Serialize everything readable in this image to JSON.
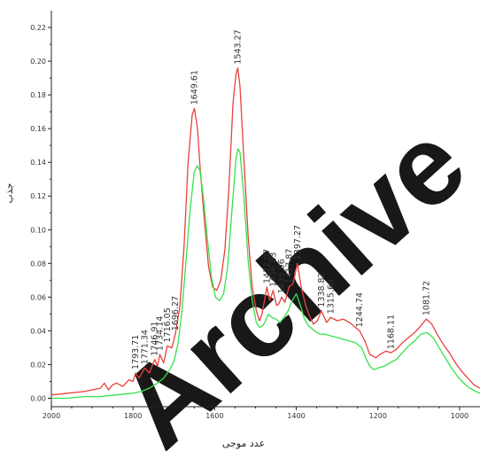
{
  "chart_data": {
    "type": "line",
    "xlabel": "عدد موجی",
    "ylabel": "جذب",
    "xlim": [
      2000,
      950
    ],
    "x_reversed": true,
    "ylim": [
      -0.005,
      0.23
    ],
    "x_ticks": [
      2000,
      1800,
      1600,
      1400,
      1200,
      1000
    ],
    "y_ticks": [
      0.0,
      0.02,
      0.04,
      0.06,
      0.08,
      0.1,
      0.12,
      0.14,
      0.16,
      0.18,
      0.2,
      0.22
    ],
    "x_tick_labels": [
      "2000",
      "1800",
      "1600",
      "1400",
      "1200",
      "1000"
    ],
    "y_tick_labels": [
      "0.00",
      "0.02",
      "0.04",
      "0.06",
      "0.08",
      "0.10",
      "0.12",
      "0.14",
      "0.16",
      "0.18",
      "0.20",
      "0.22"
    ],
    "grid": false,
    "series": [
      {
        "color": "#e8413c",
        "x": [
          2000,
          1960,
          1920,
          1900,
          1880,
          1870,
          1860,
          1850,
          1840,
          1825,
          1810,
          1800,
          1793.71,
          1785,
          1771.34,
          1760,
          1746.91,
          1740,
          1734.14,
          1725,
          1716.05,
          1705,
          1696.27,
          1685,
          1675,
          1665,
          1655,
          1649.61,
          1642,
          1635,
          1625,
          1615,
          1605,
          1595,
          1585,
          1575,
          1565,
          1555,
          1548,
          1543.27,
          1538,
          1528,
          1518,
          1508,
          1498,
          1490,
          1484,
          1478,
          1472.07,
          1465,
          1456.83,
          1448,
          1443,
          1435.96,
          1428,
          1417.87,
          1408,
          1397.27,
          1388,
          1378,
          1368,
          1358,
          1348,
          1338.82,
          1326,
          1315.6,
          1300,
          1285,
          1270,
          1255,
          1244.74,
          1232,
          1220,
          1205,
          1195,
          1180,
          1168.11,
          1155,
          1140,
          1125,
          1110,
          1095,
          1081.72,
          1068,
          1055,
          1040,
          1025,
          1010,
          995,
          980,
          965,
          950
        ],
        "y": [
          0.002,
          0.003,
          0.004,
          0.005,
          0.006,
          0.009,
          0.005,
          0.008,
          0.009,
          0.007,
          0.011,
          0.01,
          0.015,
          0.012,
          0.018,
          0.015,
          0.023,
          0.019,
          0.026,
          0.021,
          0.031,
          0.03,
          0.038,
          0.055,
          0.09,
          0.14,
          0.168,
          0.172,
          0.16,
          0.135,
          0.105,
          0.078,
          0.066,
          0.064,
          0.07,
          0.088,
          0.125,
          0.175,
          0.192,
          0.196,
          0.185,
          0.14,
          0.096,
          0.066,
          0.052,
          0.046,
          0.05,
          0.058,
          0.066,
          0.058,
          0.064,
          0.055,
          0.056,
          0.06,
          0.057,
          0.066,
          0.068,
          0.08,
          0.066,
          0.056,
          0.049,
          0.044,
          0.046,
          0.052,
          0.045,
          0.048,
          0.046,
          0.047,
          0.045,
          0.042,
          0.04,
          0.034,
          0.026,
          0.024,
          0.026,
          0.028,
          0.027,
          0.029,
          0.033,
          0.036,
          0.039,
          0.043,
          0.047,
          0.044,
          0.038,
          0.032,
          0.027,
          0.021,
          0.016,
          0.012,
          0.008,
          0.006
        ]
      },
      {
        "color": "#36e24a",
        "x": [
          2000,
          1960,
          1920,
          1880,
          1840,
          1800,
          1780,
          1760,
          1740,
          1725,
          1710,
          1700,
          1690,
          1680,
          1670,
          1660,
          1650,
          1643,
          1636,
          1628,
          1618,
          1608,
          1598,
          1588,
          1578,
          1568,
          1558,
          1548,
          1543,
          1538,
          1528,
          1518,
          1508,
          1498,
          1490,
          1482,
          1475,
          1468,
          1460,
          1450,
          1440,
          1430,
          1420,
          1410,
          1400,
          1390,
          1380,
          1370,
          1360,
          1350,
          1340,
          1330,
          1315,
          1300,
          1285,
          1270,
          1255,
          1240,
          1230,
          1220,
          1210,
          1200,
          1185,
          1170,
          1155,
          1140,
          1125,
          1110,
          1095,
          1080,
          1065,
          1050,
          1035,
          1020,
          1005,
          990,
          975,
          960,
          950
        ],
        "y": [
          0.0,
          0.0,
          0.001,
          0.001,
          0.002,
          0.003,
          0.004,
          0.006,
          0.009,
          0.012,
          0.017,
          0.022,
          0.032,
          0.052,
          0.082,
          0.112,
          0.134,
          0.138,
          0.135,
          0.12,
          0.095,
          0.072,
          0.06,
          0.058,
          0.062,
          0.078,
          0.11,
          0.142,
          0.148,
          0.146,
          0.118,
          0.082,
          0.058,
          0.045,
          0.042,
          0.043,
          0.046,
          0.05,
          0.048,
          0.047,
          0.045,
          0.048,
          0.052,
          0.058,
          0.062,
          0.055,
          0.047,
          0.043,
          0.041,
          0.039,
          0.038,
          0.038,
          0.037,
          0.036,
          0.035,
          0.034,
          0.033,
          0.03,
          0.024,
          0.019,
          0.017,
          0.018,
          0.019,
          0.021,
          0.023,
          0.027,
          0.031,
          0.034,
          0.038,
          0.039,
          0.036,
          0.03,
          0.024,
          0.018,
          0.013,
          0.009,
          0.006,
          0.004,
          0.003
        ]
      }
    ],
    "annotations": [
      {
        "label": "1793.71",
        "x": 1793.71,
        "y": 0.015
      },
      {
        "label": "1771.34",
        "x": 1771.34,
        "y": 0.018
      },
      {
        "label": "1746.91",
        "x": 1746.91,
        "y": 0.023
      },
      {
        "label": "1734.14",
        "x": 1734.14,
        "y": 0.026
      },
      {
        "label": "1716.05",
        "x": 1716.05,
        "y": 0.031
      },
      {
        "label": "1696.27",
        "x": 1696.27,
        "y": 0.038
      },
      {
        "label": "1649.61",
        "x": 1649.61,
        "y": 0.172
      },
      {
        "label": "1543.27",
        "x": 1543.27,
        "y": 0.196
      },
      {
        "label": "1472.07",
        "x": 1472.07,
        "y": 0.066
      },
      {
        "label": "1456.83",
        "x": 1456.83,
        "y": 0.064
      },
      {
        "label": "1435.96",
        "x": 1435.96,
        "y": 0.06
      },
      {
        "label": "1417.87",
        "x": 1417.87,
        "y": 0.066
      },
      {
        "label": "1397.27",
        "x": 1397.27,
        "y": 0.08
      },
      {
        "label": "1338.82",
        "x": 1338.82,
        "y": 0.052
      },
      {
        "label": "1315.60",
        "x": 1315.6,
        "y": 0.048
      },
      {
        "label": "1244.74",
        "x": 1244.74,
        "y": 0.04
      },
      {
        "label": "1168.11",
        "x": 1168.11,
        "y": 0.027
      },
      {
        "label": "1081.72",
        "x": 1081.72,
        "y": 0.047
      }
    ]
  },
  "watermark": {
    "text": "Archive",
    "color": "#000000"
  }
}
